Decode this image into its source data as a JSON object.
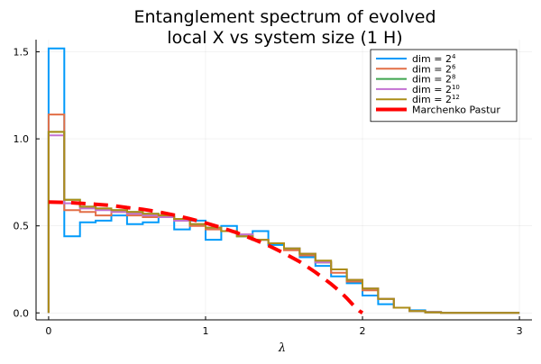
{
  "chart_data": {
    "type": "line",
    "title_line1": "Entanglement spectrum of evolved",
    "title_line2": "local X vs system size (1 H)",
    "xlabel": "λ",
    "ylabel": "",
    "xlim": [
      -0.08,
      3.08
    ],
    "ylim": [
      -0.04,
      1.57
    ],
    "xticks": [
      0,
      1,
      2,
      3
    ],
    "xtick_labels": [
      "0",
      "1",
      "2",
      "3"
    ],
    "yticks": [
      0.0,
      0.5,
      1.0,
      1.5
    ],
    "ytick_labels": [
      "0.0",
      "0.5",
      "1.0",
      "1.5"
    ],
    "grid": true,
    "legend_position": "top-right",
    "bin_width": 0.1,
    "bin_starts": [
      0.0,
      0.1,
      0.2,
      0.3,
      0.4,
      0.5,
      0.6,
      0.7,
      0.8,
      0.9,
      1.0,
      1.1,
      1.2,
      1.3,
      1.4,
      1.5,
      1.6,
      1.7,
      1.8,
      1.9,
      2.0,
      2.1,
      2.2,
      2.3,
      2.4,
      2.5,
      2.6,
      2.7,
      2.8,
      2.9
    ],
    "series": [
      {
        "name": "dim = 2",
        "exponent": "4",
        "color": "#009AFA",
        "values": [
          1.52,
          0.44,
          0.52,
          0.53,
          0.56,
          0.51,
          0.52,
          0.55,
          0.48,
          0.53,
          0.42,
          0.5,
          0.44,
          0.47,
          0.39,
          0.37,
          0.32,
          0.27,
          0.21,
          0.17,
          0.1,
          0.05,
          0.03,
          0.015,
          0.005,
          0.0,
          0.0,
          0.0,
          0.0,
          0.0
        ]
      },
      {
        "name": "dim = 2",
        "exponent": "6",
        "color": "#E26F46",
        "values": [
          1.14,
          0.59,
          0.58,
          0.56,
          0.58,
          0.56,
          0.55,
          0.55,
          0.53,
          0.5,
          0.48,
          0.47,
          0.45,
          0.42,
          0.4,
          0.36,
          0.33,
          0.29,
          0.23,
          0.18,
          0.13,
          0.08,
          0.03,
          0.01,
          0.005,
          0.0,
          0.0,
          0.0,
          0.0,
          0.0
        ]
      },
      {
        "name": "dim = 2",
        "exponent": "8",
        "color": "#3EA44E",
        "values": [
          1.04,
          0.65,
          0.61,
          0.6,
          0.59,
          0.58,
          0.57,
          0.56,
          0.54,
          0.51,
          0.49,
          0.47,
          0.44,
          0.42,
          0.4,
          0.37,
          0.34,
          0.29,
          0.25,
          0.19,
          0.14,
          0.08,
          0.03,
          0.01,
          0.003,
          0.0,
          0.0,
          0.0,
          0.0,
          0.0
        ]
      },
      {
        "name": "dim = 2",
        "exponent": "10",
        "color": "#C271D2",
        "values": [
          1.02,
          0.63,
          0.6,
          0.59,
          0.58,
          0.57,
          0.56,
          0.55,
          0.53,
          0.51,
          0.49,
          0.47,
          0.45,
          0.42,
          0.4,
          0.37,
          0.34,
          0.29,
          0.25,
          0.19,
          0.14,
          0.08,
          0.03,
          0.01,
          0.003,
          0.0,
          0.0,
          0.0,
          0.0,
          0.0
        ]
      },
      {
        "name": "dim = 2",
        "exponent": "12",
        "color": "#AC8D18",
        "values": [
          1.04,
          0.65,
          0.61,
          0.6,
          0.59,
          0.58,
          0.57,
          0.56,
          0.54,
          0.51,
          0.49,
          0.47,
          0.44,
          0.42,
          0.4,
          0.37,
          0.34,
          0.3,
          0.25,
          0.19,
          0.14,
          0.08,
          0.03,
          0.01,
          0.003,
          0.0,
          0.0,
          0.0,
          0.0,
          0.0
        ]
      }
    ],
    "reference": {
      "name": "Marchenko Pastur",
      "color": "#FF0000",
      "x": [
        0.0,
        0.1,
        0.2,
        0.3,
        0.4,
        0.5,
        0.6,
        0.7,
        0.8,
        0.9,
        1.0,
        1.1,
        1.2,
        1.3,
        1.4,
        1.5,
        1.6,
        1.7,
        1.8,
        1.85,
        1.9,
        1.95,
        1.98,
        2.0
      ],
      "y": [
        0.637,
        0.635,
        0.63,
        0.624,
        0.617,
        0.605,
        0.595,
        0.58,
        0.562,
        0.541,
        0.517,
        0.49,
        0.46,
        0.425,
        0.387,
        0.343,
        0.294,
        0.234,
        0.166,
        0.128,
        0.085,
        0.036,
        0.012,
        0.0
      ]
    }
  }
}
